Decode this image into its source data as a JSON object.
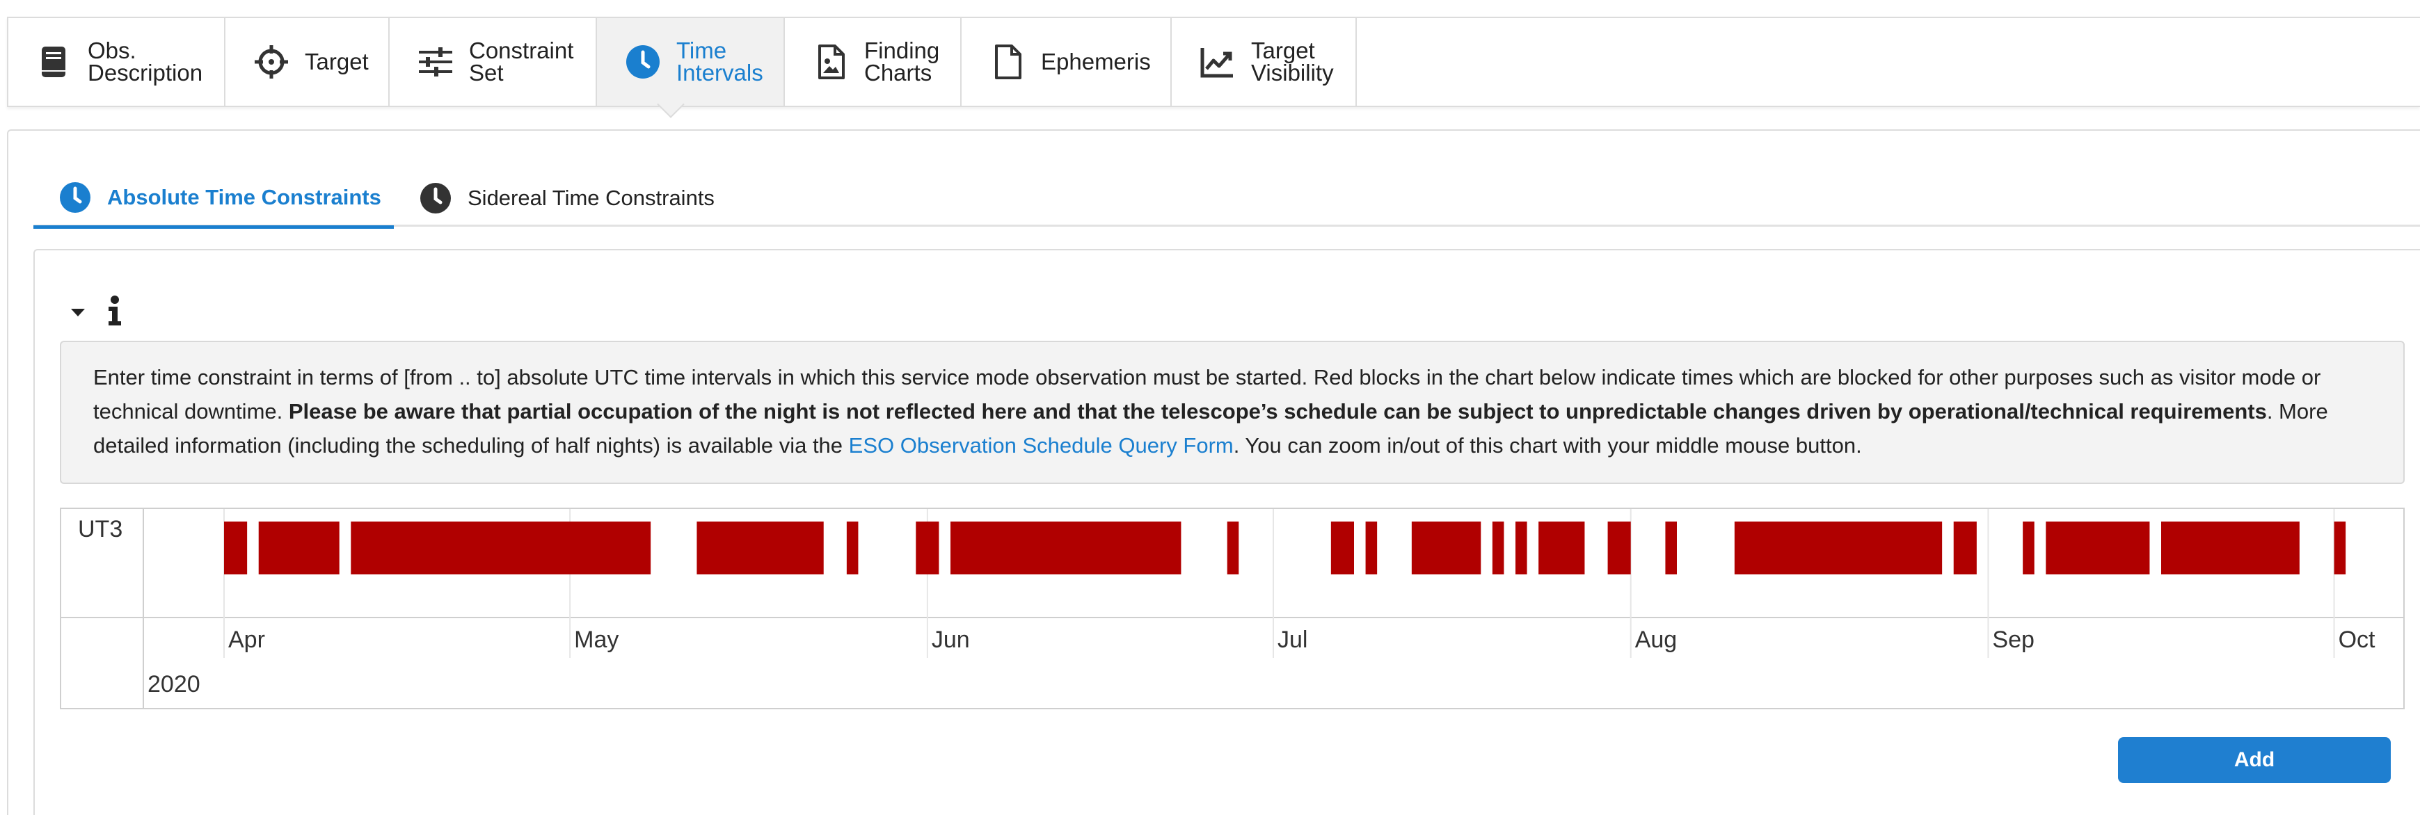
{
  "top_tabs": [
    {
      "line1": "Obs.",
      "line2": "Description",
      "icon": "document-icon",
      "active": false
    },
    {
      "line1": "Target",
      "line2": "",
      "icon": "crosshair-icon",
      "active": false
    },
    {
      "line1": "Constraint",
      "line2": "Set",
      "icon": "sliders-icon",
      "active": false
    },
    {
      "line1": "Time",
      "line2": "Intervals",
      "icon": "clock-icon",
      "active": true
    },
    {
      "line1": "Finding",
      "line2": "Charts",
      "icon": "image-file-icon",
      "active": false
    },
    {
      "line1": "Ephemeris",
      "line2": "",
      "icon": "file-icon",
      "active": false
    },
    {
      "line1": "Target",
      "line2": "Visibility",
      "icon": "line-chart-icon",
      "active": false
    }
  ],
  "sub_tabs": {
    "absolute": "Absolute Time Constraints",
    "sidereal": "Sidereal Time Constraints"
  },
  "info": {
    "text_1": "Enter time constraint in terms of [from .. to] absolute UTC time intervals in which this service mode observation must be started. Red blocks in the chart below indicate times which are blocked for other purposes such as visitor mode or technical downtime. ",
    "text_bold": "Please be aware that partial occupation of the night is not reflected here and that the telescope’s schedule can be subject to unpredictable changes driven by operational/technical requirements",
    "text_2": ". More detailed information (including the scheduling of half nights) is available via the ",
    "link": "ESO Observation Schedule Query Form",
    "text_3": ". You can zoom in/out of this chart with your middle mouse button."
  },
  "chart_data": {
    "type": "timeline",
    "row_label": "UT3",
    "year_label": "2020",
    "x_start": "2020-03-25",
    "x_end": "2020-10-07",
    "month_ticks": [
      {
        "label": "Apr",
        "date": "2020-04-01"
      },
      {
        "label": "May",
        "date": "2020-05-01"
      },
      {
        "label": "Jun",
        "date": "2020-06-01"
      },
      {
        "label": "Jul",
        "date": "2020-07-01"
      },
      {
        "label": "Aug",
        "date": "2020-08-01"
      },
      {
        "label": "Sep",
        "date": "2020-09-01"
      },
      {
        "label": "Oct",
        "date": "2020-10-01"
      }
    ],
    "blocked_color": "#b00000",
    "blocked_intervals": [
      [
        "2020-04-01",
        "2020-04-03"
      ],
      [
        "2020-04-04",
        "2020-04-11"
      ],
      [
        "2020-04-12",
        "2020-05-08"
      ],
      [
        "2020-05-12",
        "2020-05-23"
      ],
      [
        "2020-05-25",
        "2020-05-26"
      ],
      [
        "2020-05-31",
        "2020-06-02"
      ],
      [
        "2020-06-03",
        "2020-06-23"
      ],
      [
        "2020-06-27",
        "2020-06-28"
      ],
      [
        "2020-07-06",
        "2020-07-08"
      ],
      [
        "2020-07-09",
        "2020-07-10"
      ],
      [
        "2020-07-13",
        "2020-07-19"
      ],
      [
        "2020-07-20",
        "2020-07-21"
      ],
      [
        "2020-07-22",
        "2020-07-23"
      ],
      [
        "2020-07-24",
        "2020-07-28"
      ],
      [
        "2020-07-30",
        "2020-08-01"
      ],
      [
        "2020-08-04",
        "2020-08-05"
      ],
      [
        "2020-08-10",
        "2020-08-28"
      ],
      [
        "2020-08-29",
        "2020-08-31"
      ],
      [
        "2020-09-04",
        "2020-09-05"
      ],
      [
        "2020-09-06",
        "2020-09-15"
      ],
      [
        "2020-09-16",
        "2020-09-28"
      ],
      [
        "2020-10-01",
        "2020-10-02"
      ]
    ]
  },
  "actions": {
    "add": "Add"
  },
  "colors": {
    "accent": "#1a7fcf",
    "button": "#1f7fd0"
  }
}
